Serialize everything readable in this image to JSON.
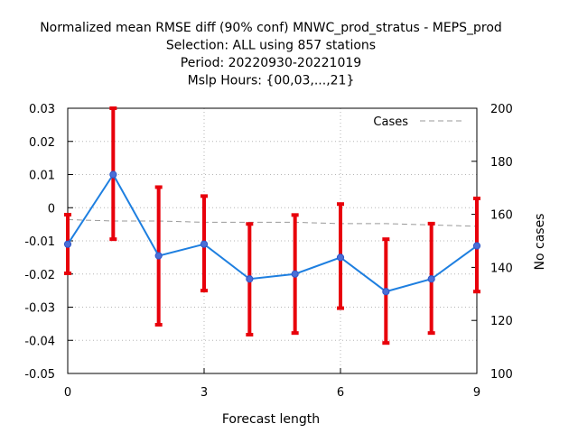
{
  "chart_data": {
    "type": "line",
    "title_lines": [
      "Normalized mean RMSE diff (90% conf) MNWC_prod_stratus - MEPS_prod",
      "Selection: ALL using   857 stations",
      "Period: 20220930-20221019",
      "Mslp   Hours: {00,03,...,21}"
    ],
    "xlabel": "Forecast length",
    "ylabel": "",
    "y2label": "No cases",
    "xlim": [
      0,
      9
    ],
    "ylim": [
      -0.05,
      0.03
    ],
    "y2lim": [
      100,
      200
    ],
    "xticks": [
      "0",
      "3",
      "6",
      "9"
    ],
    "yticks": [
      "0.03",
      "0.02",
      "0.01",
      "0",
      "-0.01",
      "-0.02",
      "-0.03",
      "-0.04",
      "-0.05"
    ],
    "y2ticks": [
      "200",
      "180",
      "160",
      "140",
      "120",
      "100"
    ],
    "grid": true,
    "legend_position": "top-right",
    "series": [
      {
        "role": "diff",
        "color": "#1e7fe0",
        "x": [
          0,
          1,
          2,
          3,
          4,
          5,
          6,
          7,
          8,
          9
        ],
        "values": [
          -0.011,
          0.01,
          -0.0145,
          -0.011,
          -0.0215,
          -0.02,
          -0.015,
          -0.0253,
          -0.0215,
          -0.0115
        ],
        "err_low": [
          -0.0198,
          -0.0095,
          -0.0353,
          -0.025,
          -0.0383,
          -0.0378,
          -0.0303,
          -0.0408,
          -0.0378,
          -0.0253
        ],
        "err_high": [
          -0.0021,
          0.03,
          0.0062,
          0.0035,
          -0.0049,
          -0.0022,
          0.0011,
          -0.0095,
          -0.0048,
          0.0028
        ]
      },
      {
        "name": "Cases",
        "axis": "right",
        "color": "#999999",
        "x": [
          0,
          1,
          2,
          3,
          4,
          5,
          6,
          7,
          8,
          9
        ],
        "values": [
          158,
          157.5,
          157.5,
          157,
          157,
          157,
          156.5,
          156.5,
          156,
          155.5
        ]
      }
    ],
    "error_color": "#e8000b"
  }
}
